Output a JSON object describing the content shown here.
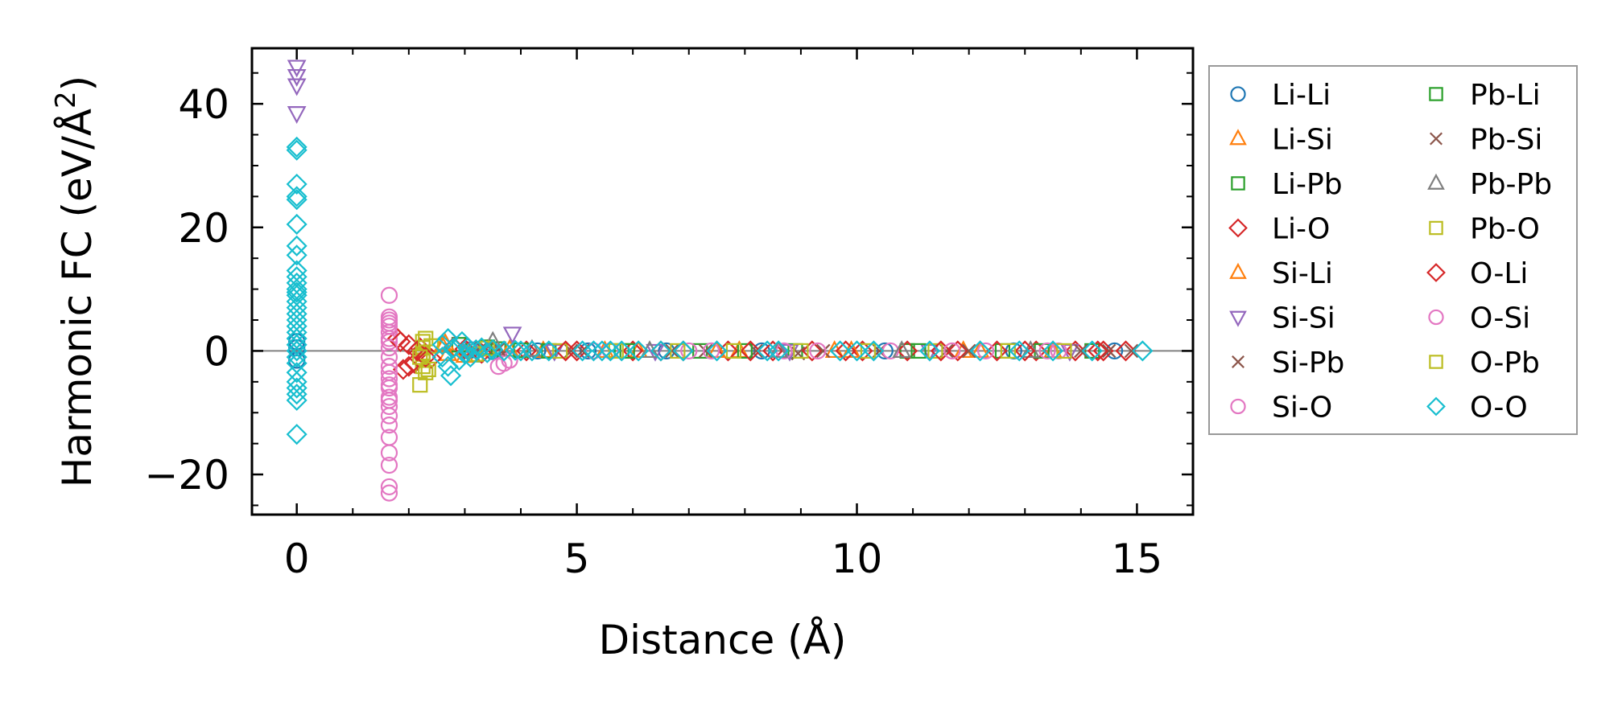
{
  "chart_data": {
    "type": "scatter",
    "xlabel": "Distance (Å)",
    "ylabel_main": "Harmonic FC (eV/Å",
    "ylabel_sup": "2",
    "ylabel_close": ")",
    "xlim": [
      -0.8,
      16
    ],
    "ylim": [
      -26.5,
      49
    ],
    "xticks": [
      0,
      5,
      10,
      15
    ],
    "xtick_labels": [
      "0",
      "5",
      "10",
      "15"
    ],
    "yticks": [
      -20,
      0,
      20,
      40
    ],
    "ytick_labels": [
      "−20",
      "0",
      "20",
      "40"
    ],
    "legend_position": "outside-right",
    "zero_line": true,
    "series": [
      {
        "name": "Li-Li",
        "marker": "circle",
        "color": "#1f77b4",
        "points": [
          [
            0,
            1.5
          ],
          [
            0,
            -1.5
          ],
          [
            0,
            0.5
          ],
          [
            3.1,
            0.1
          ],
          [
            3.5,
            -0.1
          ],
          [
            4.3,
            0
          ],
          [
            5.2,
            0
          ],
          [
            6.6,
            0
          ],
          [
            8.3,
            0
          ],
          [
            10.5,
            0
          ],
          [
            12.8,
            0
          ],
          [
            14.6,
            0
          ]
        ]
      },
      {
        "name": "Li-Si",
        "marker": "triangle-up",
        "color": "#ff7f0e",
        "points": [
          [
            2.6,
            0.8
          ],
          [
            2.7,
            -0.5
          ],
          [
            3.0,
            0.4
          ],
          [
            3.4,
            0.2
          ],
          [
            4.4,
            0
          ],
          [
            6.1,
            0
          ],
          [
            7.9,
            0
          ],
          [
            9.6,
            0
          ],
          [
            11.9,
            0
          ],
          [
            13.5,
            0
          ]
        ]
      },
      {
        "name": "Li-Pb",
        "marker": "square",
        "color": "#2ca02c",
        "points": [
          [
            2.9,
            1.0
          ],
          [
            3.2,
            -0.6
          ],
          [
            3.6,
            0.3
          ],
          [
            4.5,
            0
          ],
          [
            5.8,
            0
          ],
          [
            7.2,
            0
          ],
          [
            8.9,
            0
          ],
          [
            10.9,
            0
          ],
          [
            12.6,
            0
          ],
          [
            14.2,
            0
          ]
        ]
      },
      {
        "name": "Li-O",
        "marker": "diamond",
        "color": "#d62728",
        "points": [
          [
            1.8,
            2.0
          ],
          [
            1.9,
            -3.0
          ],
          [
            2.0,
            1.0
          ],
          [
            2.1,
            -2.0
          ],
          [
            2.2,
            0.5
          ],
          [
            2.4,
            -1.2
          ],
          [
            2.8,
            0.6
          ],
          [
            3.3,
            -0.4
          ],
          [
            4.1,
            0
          ],
          [
            5.0,
            0
          ],
          [
            6.0,
            0
          ],
          [
            6.9,
            0
          ],
          [
            7.7,
            0
          ],
          [
            8.5,
            0
          ],
          [
            9.2,
            0
          ],
          [
            10.1,
            0
          ],
          [
            10.9,
            0
          ],
          [
            11.8,
            0
          ],
          [
            12.5,
            0
          ],
          [
            13.2,
            0
          ],
          [
            13.9,
            0
          ],
          [
            14.4,
            0
          ],
          [
            14.8,
            0
          ]
        ]
      },
      {
        "name": "Si-Li",
        "marker": "triangle-up",
        "color": "#ff7f0e",
        "points": [
          [
            2.65,
            1.2
          ],
          [
            3.0,
            -0.8
          ],
          [
            3.8,
            0.2
          ],
          [
            5.5,
            0
          ],
          [
            7.5,
            0
          ],
          [
            9.9,
            0
          ],
          [
            12.2,
            0
          ]
        ]
      },
      {
        "name": "Si-Si",
        "marker": "triangle-down",
        "color": "#9467bd",
        "points": [
          [
            0,
            46
          ],
          [
            0,
            44.5
          ],
          [
            0,
            43
          ],
          [
            0,
            38.5
          ],
          [
            3.85,
            2.8
          ],
          [
            3.1,
            0.4
          ],
          [
            4.6,
            0
          ],
          [
            6.4,
            0
          ],
          [
            8.8,
            0
          ],
          [
            11.3,
            0
          ],
          [
            13.8,
            0
          ]
        ]
      },
      {
        "name": "Si-Pb",
        "marker": "x",
        "color": "#8c564b",
        "points": [
          [
            3.3,
            0.5
          ],
          [
            3.7,
            -0.3
          ],
          [
            4.9,
            0
          ],
          [
            6.7,
            0
          ],
          [
            8.2,
            0
          ],
          [
            8.95,
            -0.4
          ],
          [
            10.4,
            0
          ],
          [
            12.0,
            0
          ],
          [
            14.0,
            0
          ],
          [
            14.9,
            0
          ]
        ]
      },
      {
        "name": "Si-O",
        "marker": "circle",
        "color": "#e377c2",
        "points": [
          [
            1.65,
            9.0
          ],
          [
            1.65,
            5.5
          ],
          [
            1.65,
            5.0
          ],
          [
            1.65,
            4.5
          ],
          [
            1.65,
            3.0
          ],
          [
            1.65,
            2.0
          ],
          [
            1.65,
            1.5
          ],
          [
            1.65,
            -1.0
          ],
          [
            1.65,
            -2.5
          ],
          [
            1.65,
            -3.5
          ],
          [
            1.65,
            -4.5
          ],
          [
            1.65,
            -6.0
          ],
          [
            1.65,
            -7.5
          ],
          [
            1.65,
            -9.0
          ],
          [
            1.65,
            -10.5
          ],
          [
            1.65,
            -12.0
          ],
          [
            1.65,
            -14.0
          ],
          [
            1.65,
            -16.5
          ],
          [
            1.65,
            -18.5
          ],
          [
            1.65,
            -22.0
          ],
          [
            1.65,
            -23.0
          ],
          [
            3.7,
            -2.0
          ],
          [
            3.8,
            -1.5
          ],
          [
            5.3,
            0
          ],
          [
            7.0,
            0
          ],
          [
            8.7,
            0
          ],
          [
            10.6,
            0
          ],
          [
            12.3,
            0
          ],
          [
            13.6,
            0
          ]
        ]
      },
      {
        "name": "Pb-Li",
        "marker": "square",
        "color": "#2ca02c",
        "points": [
          [
            3.4,
            0.6
          ],
          [
            4.0,
            0.1
          ],
          [
            5.9,
            0
          ],
          [
            8.0,
            0
          ],
          [
            11.1,
            0
          ],
          [
            13.3,
            0
          ]
        ]
      },
      {
        "name": "Pb-Si",
        "marker": "x",
        "color": "#8c564b",
        "points": [
          [
            3.6,
            0.3
          ],
          [
            5.1,
            0
          ],
          [
            7.3,
            0
          ],
          [
            9.4,
            0
          ],
          [
            11.6,
            0
          ],
          [
            14.5,
            0
          ]
        ]
      },
      {
        "name": "Pb-Pb",
        "marker": "triangle-up",
        "color": "#7f7f7f",
        "points": [
          [
            3.5,
            1.5
          ],
          [
            4.2,
            0.2
          ],
          [
            6.3,
            0
          ],
          [
            8.6,
            0
          ],
          [
            10.8,
            0
          ],
          [
            13.1,
            0
          ]
        ]
      },
      {
        "name": "Pb-O",
        "marker": "square",
        "color": "#bcbd22",
        "points": [
          [
            2.25,
            1.5
          ],
          [
            2.25,
            0.5
          ],
          [
            2.25,
            -0.5
          ],
          [
            2.25,
            -1.5
          ],
          [
            2.25,
            -2.5
          ],
          [
            2.2,
            -5.5
          ],
          [
            2.3,
            -3.5
          ],
          [
            2.4,
            0.8
          ],
          [
            3.2,
            -0.5
          ],
          [
            4.7,
            0
          ],
          [
            6.8,
            0
          ],
          [
            9.0,
            0
          ],
          [
            11.4,
            0
          ],
          [
            13.7,
            0
          ]
        ]
      },
      {
        "name": "O-Li",
        "marker": "diamond",
        "color": "#d62728",
        "points": [
          [
            1.85,
            1.5
          ],
          [
            2.0,
            -2.5
          ],
          [
            2.15,
            0.0
          ],
          [
            2.3,
            -1.0
          ],
          [
            3.0,
            0.3
          ],
          [
            4.8,
            0
          ],
          [
            6.5,
            0
          ],
          [
            8.1,
            0
          ],
          [
            9.8,
            0
          ],
          [
            11.5,
            0
          ],
          [
            13.0,
            0
          ],
          [
            14.3,
            0
          ]
        ]
      },
      {
        "name": "O-Si",
        "marker": "circle",
        "color": "#e377c2",
        "points": [
          [
            1.65,
            4.0
          ],
          [
            1.65,
            0.5
          ],
          [
            1.65,
            -5.5
          ],
          [
            1.65,
            -8.0
          ],
          [
            3.6,
            -2.5
          ],
          [
            5.6,
            0
          ],
          [
            7.4,
            0
          ],
          [
            9.3,
            0
          ],
          [
            11.7,
            0
          ],
          [
            13.4,
            0
          ]
        ]
      },
      {
        "name": "O-Pb",
        "marker": "square",
        "color": "#bcbd22",
        "points": [
          [
            2.3,
            2.0
          ],
          [
            2.2,
            -1.0
          ],
          [
            2.35,
            -3.0
          ],
          [
            3.4,
            0.4
          ],
          [
            5.7,
            0
          ],
          [
            7.8,
            0
          ],
          [
            10.2,
            0
          ],
          [
            12.7,
            0
          ]
        ]
      },
      {
        "name": "O-O",
        "marker": "diamond",
        "color": "#17becf",
        "points": [
          [
            0,
            33
          ],
          [
            0,
            32.5
          ],
          [
            0,
            27
          ],
          [
            0,
            25
          ],
          [
            0,
            24.5
          ],
          [
            0,
            20.5
          ],
          [
            0,
            17
          ],
          [
            0,
            15.5
          ],
          [
            0,
            13
          ],
          [
            0,
            12
          ],
          [
            0,
            11
          ],
          [
            0,
            10
          ],
          [
            0,
            9.5
          ],
          [
            0,
            9
          ],
          [
            0,
            8
          ],
          [
            0,
            7
          ],
          [
            0,
            6
          ],
          [
            0,
            5
          ],
          [
            0,
            4
          ],
          [
            0,
            3
          ],
          [
            0,
            2
          ],
          [
            0,
            1
          ],
          [
            0,
            0
          ],
          [
            0,
            -1
          ],
          [
            0,
            -2
          ],
          [
            0,
            -3.5
          ],
          [
            0,
            -5
          ],
          [
            0,
            -6
          ],
          [
            0,
            -7
          ],
          [
            0,
            -8
          ],
          [
            0,
            -13.5
          ],
          [
            2.6,
            1.0
          ],
          [
            2.6,
            -1.0
          ],
          [
            2.7,
            2.0
          ],
          [
            2.7,
            -2.5
          ],
          [
            2.75,
            -4.0
          ],
          [
            2.8,
            0.5
          ],
          [
            2.9,
            -1.5
          ],
          [
            2.95,
            1.5
          ],
          [
            3.0,
            -0.5
          ],
          [
            3.05,
            0.5
          ],
          [
            3.1,
            -1.0
          ],
          [
            3.2,
            0.2
          ],
          [
            3.3,
            0.5
          ],
          [
            3.4,
            -0.3
          ],
          [
            3.5,
            0.2
          ],
          [
            3.7,
            0
          ],
          [
            3.9,
            0.1
          ],
          [
            4.0,
            0
          ],
          [
            4.2,
            0
          ],
          [
            4.5,
            0
          ],
          [
            5.1,
            0
          ],
          [
            5.3,
            0
          ],
          [
            5.45,
            0
          ],
          [
            5.6,
            0
          ],
          [
            5.8,
            0
          ],
          [
            6.1,
            0
          ],
          [
            6.5,
            0
          ],
          [
            6.9,
            0
          ],
          [
            7.5,
            0
          ],
          [
            8.4,
            0
          ],
          [
            8.6,
            0
          ],
          [
            9.7,
            0
          ],
          [
            10.0,
            0
          ],
          [
            10.3,
            0
          ],
          [
            11.3,
            0
          ],
          [
            12.2,
            0
          ],
          [
            12.9,
            0
          ],
          [
            13.5,
            0
          ],
          [
            14.2,
            0
          ],
          [
            15.1,
            0.0
          ]
        ]
      }
    ]
  }
}
